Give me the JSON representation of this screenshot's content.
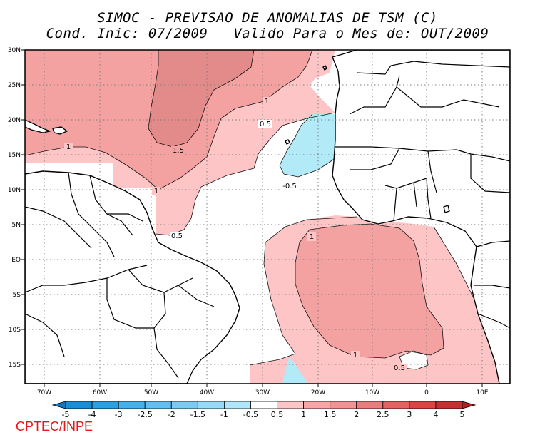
{
  "title": {
    "line1": "SIMOC - PREVISAO DE ANOMALIAS DE TSM (C)",
    "line2": "Cond. Inic: 07/2009   Valido Para o Mes de: OUT/2009"
  },
  "credit": "CPTEC/INPE",
  "axes": {
    "lat_labels": [
      "30N",
      "25N",
      "20N",
      "15N",
      "10N",
      "5N",
      "EQ",
      "5S",
      "10S",
      "15S"
    ],
    "lon_labels": [
      "70W",
      "60W",
      "50W",
      "40W",
      "30W",
      "20W",
      "10W",
      "0",
      "10E"
    ]
  },
  "contour_labels": {
    "c1_north": "1",
    "c1_caribbean": "1",
    "c1_10n": "1",
    "c15": "1.5",
    "c05_north": "0.5",
    "c05_5n": "0.5",
    "cm05": "-0.5",
    "c1_south": "1",
    "c1_south2": "1",
    "c05_south": "0.5"
  },
  "colorbar": {
    "labels": [
      "-5",
      "-4",
      "-3",
      "-2.5",
      "-2",
      "-1.5",
      "-1",
      "-0.5",
      "0.5",
      "1",
      "1.5",
      "2",
      "2.5",
      "3",
      "4",
      "5"
    ],
    "colors": [
      "#1a8ed4",
      "#2aa0e0",
      "#45b0ea",
      "#62bdf0",
      "#7ccaf4",
      "#98d8f8",
      "#b0e6fb",
      "#ffffff",
      "#fdc5c5",
      "#f8a5a5",
      "#f19393",
      "#e97c7c",
      "#e46262",
      "#dc4343",
      "#c42f2f"
    ]
  },
  "fill_colors": {
    "anomaly_05_1": "#fdc5c5",
    "anomaly_1_15": "#f4a1a1",
    "anomaly_15_2": "#e38a8a",
    "anomaly_m05": "#b2eaf8"
  }
}
